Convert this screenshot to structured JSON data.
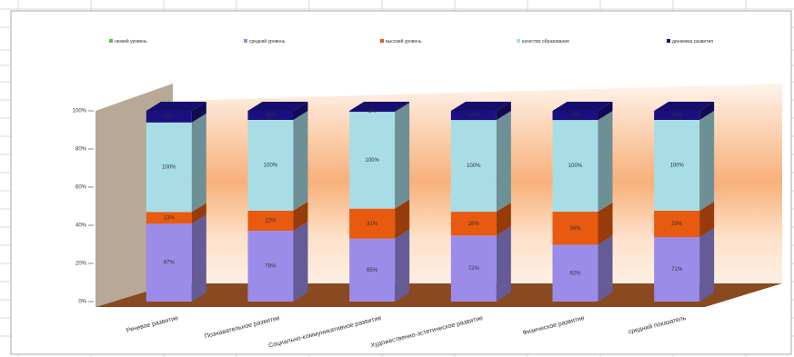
{
  "chart_data": {
    "type": "stacked-bar-3d",
    "categories": [
      "Речевое развитие",
      "Познавательное развитие",
      "Социально-коммуникативное развитие",
      "Художественно-эстетическое развитие",
      "Физическое развитие",
      "средний показатель"
    ],
    "series": [
      {
        "name": "низкий уровень",
        "color": "#5cb85c",
        "values": [
          0,
          0,
          0,
          0,
          0,
          0
        ]
      },
      {
        "name": "средний уровень",
        "color": "#9a8ce8",
        "values": [
          87,
          78,
          65,
          72,
          62,
          71
        ],
        "value_labels": [
          "87%",
          "78%",
          "65%",
          "72%",
          "62%",
          "71%"
        ]
      },
      {
        "name": "высокий уровень",
        "color": "#e85a10",
        "values": [
          13,
          22,
          31,
          26,
          36,
          29
        ],
        "value_labels": [
          "13%",
          "22%",
          "31%",
          "26%",
          "36%",
          "29%"
        ]
      },
      {
        "name": "качество образования",
        "color": "#a8dde6",
        "values": [
          100,
          100,
          100,
          100,
          100,
          100
        ],
        "value_labels": [
          "100%",
          "100%",
          "100%",
          "100%",
          "100%",
          "100%"
        ]
      },
      {
        "name": "динамика развития",
        "color": "#1a1080",
        "values": [
          13,
          10,
          1,
          10,
          10,
          10
        ],
        "value_labels": [
          "13%",
          "10%",
          "1%",
          "10%",
          "10%",
          "10%"
        ]
      }
    ],
    "ylim": [
      0,
      100
    ],
    "yticks": [
      {
        "value": 0,
        "label": "0%"
      },
      {
        "value": 20,
        "label": "20%"
      },
      {
        "value": 40,
        "label": "40%"
      },
      {
        "value": 60,
        "label": "60%"
      },
      {
        "value": 80,
        "label": "80%"
      },
      {
        "value": 100,
        "label": "100%"
      }
    ],
    "legend": "top"
  }
}
